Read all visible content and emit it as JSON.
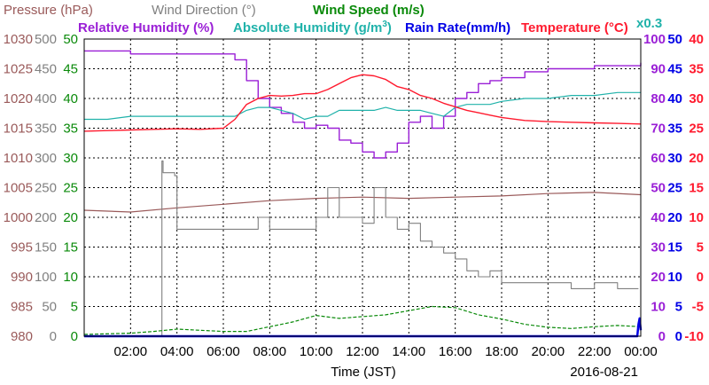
{
  "legend": {
    "pressure": "Pressure (hPa)",
    "wind_direction": "Wind Direction (°)",
    "wind_speed": "Wind Speed (m/s)",
    "humidity": "Relative Humidity (%)",
    "absolute_humidity": "Absolute Humidity (g/m",
    "absolute_humidity_sup": "3",
    "absolute_humidity_end": ")",
    "rain_rate": "Rain Rate(mm/h)",
    "temperature": "Temperature (°C)",
    "abs_scale_note": "x0.3"
  },
  "xlabel": "Time (JST)",
  "date_label": "2016-08-21",
  "colors": {
    "pressure": "#9a5a5a",
    "wind_direction": "#808080",
    "wind_speed": "#0a8a0a",
    "humidity": "#9a1fd6",
    "absolute_humidity": "#20b2aa",
    "rain_rate": "#0000e6",
    "temperature": "#ff1a2e"
  },
  "chart_data": {
    "type": "line",
    "x_unit": "hours",
    "x_range": [
      0,
      24
    ],
    "x_ticks": [
      "02:00",
      "04:00",
      "06:00",
      "08:00",
      "10:00",
      "12:00",
      "14:00",
      "16:00",
      "18:00",
      "20:00",
      "22:00",
      "00:00"
    ],
    "axes": {
      "pressure": {
        "ticks": [
          "1030",
          "1025",
          "1020",
          "1015",
          "1010",
          "1005",
          "1000",
          "995",
          "990",
          "985",
          "980"
        ],
        "ylim": [
          980,
          1030
        ]
      },
      "wind_direction": {
        "ticks": [
          "500",
          "450",
          "400",
          "350",
          "300",
          "250",
          "200",
          "150",
          "100",
          "50",
          "0"
        ],
        "ylim": [
          0,
          500
        ]
      },
      "wind_speed": {
        "ticks": [
          "50",
          "45",
          "40",
          "35",
          "30",
          "25",
          "20",
          "15",
          "10",
          "5",
          "0"
        ],
        "ylim": [
          0,
          50
        ]
      },
      "humidity": {
        "ticks": [
          "100",
          "90",
          "80",
          "70",
          "60",
          "50",
          "40",
          "30",
          "20",
          "10",
          "0"
        ],
        "ylim": [
          0,
          100
        ]
      },
      "rain_rate": {
        "ticks": [
          "50",
          "45",
          "40",
          "35",
          "30",
          "25",
          "20",
          "15",
          "10",
          "5",
          "0"
        ],
        "ylim": [
          0,
          50
        ]
      },
      "temperature": {
        "ticks": [
          "40",
          "35",
          "30",
          "25",
          "20",
          "15",
          "10",
          "5",
          "0",
          "-5",
          "-10"
        ],
        "ylim": [
          -10,
          40
        ]
      }
    },
    "grid": true,
    "series": [
      {
        "name": "Pressure (hPa)",
        "axis": "pressure",
        "x": [
          0,
          2,
          4,
          6,
          8,
          10,
          12,
          14,
          16,
          18,
          20,
          22,
          24
        ],
        "values": [
          1001.2,
          1000.9,
          1001.6,
          1002.2,
          1002.8,
          1003.2,
          1003.4,
          1003.2,
          1003.4,
          1003.6,
          1004.0,
          1004.2,
          1003.8
        ]
      },
      {
        "name": "Wind Direction (°)",
        "axis": "wind_direction",
        "x": [
          0,
          3.3,
          3.35,
          3.4,
          3.5,
          3.9,
          4.0,
          6.5,
          7.2,
          7.5,
          8,
          8.5,
          9.0,
          9.5,
          10,
          10.5,
          11,
          11.5,
          12,
          12.5,
          13,
          13.5,
          14,
          14.5,
          15,
          15.5,
          16,
          16.5,
          17,
          17.5,
          18,
          19,
          20,
          21,
          22,
          23,
          23.9
        ],
        "values": [
          0,
          0,
          295,
          275,
          275,
          270,
          180,
          180,
          180,
          200,
          180,
          180,
          180,
          180,
          200,
          250,
          200,
          200,
          190,
          250,
          200,
          180,
          190,
          160,
          150,
          140,
          130,
          110,
          100,
          110,
          90,
          90,
          90,
          80,
          90,
          80,
          80
        ]
      },
      {
        "name": "Wind Speed (m/s)",
        "axis": "wind_speed",
        "x": [
          0,
          2,
          3,
          4,
          6,
          7,
          8,
          9,
          10,
          11,
          12,
          13,
          14,
          15,
          16,
          17,
          18,
          19,
          20,
          21,
          22,
          23,
          24
        ],
        "values": [
          0.3,
          0.5,
          0.8,
          1.2,
          0.8,
          0.8,
          1.6,
          2.4,
          3.5,
          3.0,
          3.3,
          3.6,
          4.3,
          5.0,
          4.8,
          3.6,
          2.9,
          2.0,
          1.5,
          1.3,
          1.6,
          1.8,
          1.6
        ]
      },
      {
        "name": "Relative Humidity (%)",
        "axis": "humidity",
        "x": [
          0,
          1,
          2,
          3,
          4,
          5,
          6,
          6.5,
          7,
          7.5,
          8,
          8.5,
          9,
          9.5,
          10,
          10.5,
          11,
          11.5,
          12,
          12.5,
          13,
          13.5,
          14,
          14.5,
          15,
          15.5,
          16,
          16.5,
          17,
          17.5,
          18,
          19,
          20,
          21,
          22,
          23,
          24
        ],
        "values": [
          96,
          96,
          95,
          95,
          95,
          95,
          95,
          93,
          86,
          80,
          77,
          75,
          72,
          70,
          71,
          70,
          66,
          65,
          62,
          60,
          62,
          65,
          72,
          74,
          70,
          74,
          80,
          82,
          85,
          86,
          87,
          89,
          90,
          90,
          91,
          91,
          92
        ]
      },
      {
        "name": "Absolute Humidity (g/m3)",
        "axis": "humidity",
        "x": [
          0,
          1,
          2,
          3,
          4,
          5,
          6,
          6.5,
          7,
          7.5,
          8,
          8.5,
          9,
          9.5,
          10,
          10.5,
          11,
          11.5,
          12,
          12.5,
          13,
          13.5,
          14,
          14.5,
          15,
          15.5,
          16,
          16.5,
          17,
          17.5,
          18,
          19,
          20,
          21,
          22,
          23,
          24
        ],
        "values": [
          73,
          73,
          74,
          74,
          74,
          74,
          74,
          74,
          76,
          77,
          77,
          76,
          75,
          73,
          74,
          74,
          76,
          76,
          76,
          76,
          77,
          76,
          76,
          76,
          75,
          74,
          77,
          78,
          78,
          78,
          79,
          80,
          80,
          81,
          81,
          82,
          82
        ]
      },
      {
        "name": "Rain Rate(mm/h)",
        "axis": "rain_rate",
        "x": [
          0,
          23.85,
          23.9,
          23.95,
          24
        ],
        "values": [
          0,
          0,
          2,
          3,
          1
        ]
      },
      {
        "name": "Temperature (°C)",
        "axis": "temperature",
        "x": [
          0,
          1,
          2,
          3,
          4,
          5,
          6,
          6.5,
          7,
          7.5,
          8,
          8.5,
          9,
          9.5,
          10,
          10.5,
          11,
          11.5,
          12,
          12.5,
          13,
          13.5,
          14,
          14.5,
          15,
          15.5,
          16,
          16.5,
          17,
          17.5,
          18,
          19,
          20,
          21,
          22,
          23,
          24
        ],
        "values": [
          24.5,
          24.6,
          24.7,
          24.8,
          24.9,
          24.8,
          25.0,
          26.5,
          29.0,
          30.0,
          30.5,
          30.4,
          30.5,
          30.8,
          30.8,
          31.5,
          32.5,
          33.5,
          34.0,
          33.8,
          33.2,
          32.0,
          31.5,
          30.5,
          30.0,
          29.2,
          28.6,
          28.0,
          27.6,
          27.2,
          26.8,
          26.3,
          26.1,
          26.0,
          25.9,
          25.8,
          25.7
        ]
      }
    ]
  }
}
